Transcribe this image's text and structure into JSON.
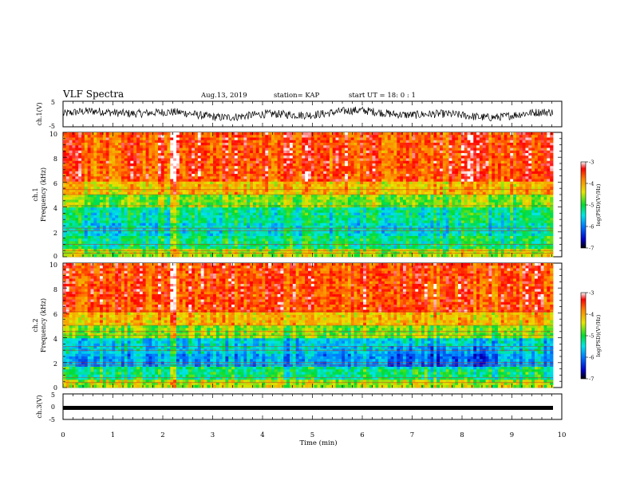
{
  "header": {
    "title": "VLF Spectra",
    "date": "Aug.13, 2019",
    "station": "station= KAP",
    "start_ut": "start  UT =   18: 0  : 1"
  },
  "chart_data": [
    {
      "type": "line",
      "panel": "ch1-waveform",
      "ylabel": "ch.1(V)",
      "ylim": [
        -5,
        5
      ],
      "yticks": [
        "5",
        "-5"
      ],
      "x_range_min": [
        0,
        9.8
      ],
      "description_color": "#000000"
    },
    {
      "type": "heatmap",
      "panel": "ch1-spectrogram",
      "ylabel": "ch.1\nFrequency  (kHz)",
      "ylim": [
        0,
        10
      ],
      "yticks": [
        "0",
        "2",
        "4",
        "6",
        "8",
        "10"
      ],
      "colorbar": {
        "label": "log(PSD)(V²/Hz)",
        "range": [
          -7,
          -3
        ],
        "ticks": [
          "-3",
          "-4",
          "-5",
          "-6",
          "-7"
        ]
      }
    },
    {
      "type": "heatmap",
      "panel": "ch2-spectrogram",
      "ylabel": "ch.2\nFrequency  (kHz)",
      "ylim": [
        0,
        10
      ],
      "yticks": [
        "0",
        "2",
        "4",
        "6",
        "8",
        "10"
      ],
      "colorbar": {
        "label": "log(PSD)(V²/Hz)",
        "range": [
          -7,
          -3
        ],
        "ticks": [
          "-3",
          "-4",
          "-5",
          "-6",
          "-7"
        ]
      }
    },
    {
      "type": "line",
      "panel": "ch3-waveform",
      "ylabel": "ch.3(V)",
      "ylim": [
        -5,
        5
      ],
      "yticks": [
        "5",
        "0",
        "-5"
      ],
      "constant_value": -0.3
    }
  ],
  "xaxis": {
    "label": "Time  (min)",
    "xlim": [
      0,
      10
    ],
    "ticks": [
      "0",
      "1",
      "2",
      "3",
      "4",
      "5",
      "6",
      "7",
      "8",
      "9",
      "10"
    ]
  }
}
